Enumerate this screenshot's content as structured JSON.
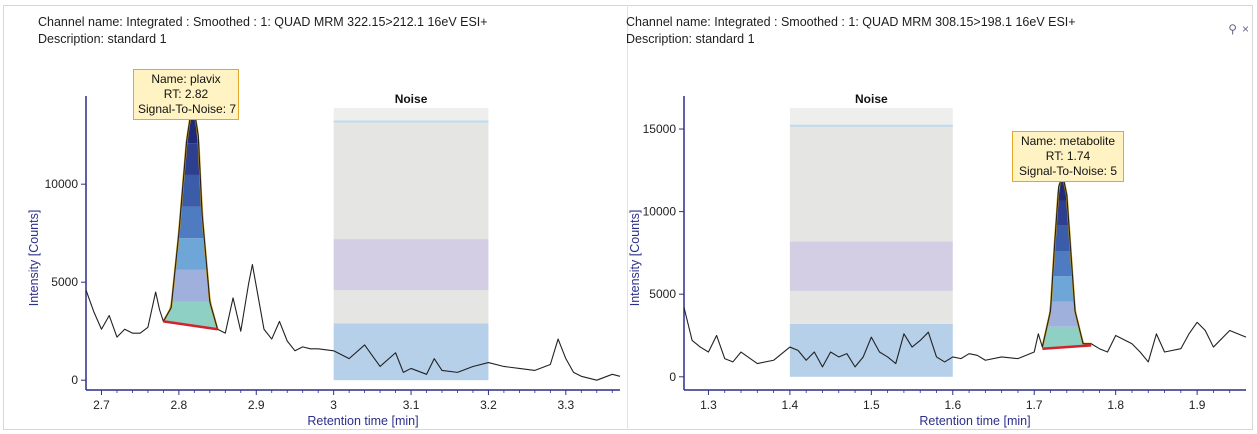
{
  "panels": [
    {
      "id": "left",
      "channel_line": "Channel name: Integrated : Smoothed : 1: QUAD MRM 322.15>212.1 16eV ESI+",
      "description_line": "Description: standard 1",
      "noise_label": "Noise",
      "tooltip": {
        "name": "Name: plavix",
        "rt": "RT: 2.82",
        "sn": "Signal-To-Noise: 7"
      }
    },
    {
      "id": "right",
      "channel_line": "Channel name: Integrated : Smoothed : 1: QUAD MRM 308.15>198.1 16eV ESI+",
      "description_line": "Description: standard 1",
      "noise_label": "Noise",
      "tooltip": {
        "name": "Name: metabolite",
        "rt": "RT: 1.74",
        "sn": "Signal-To-Noise: 5"
      }
    }
  ],
  "pane_controls": {
    "pin_icon": "pin-icon",
    "close_icon": "close-icon",
    "pin_glyph": "⚲",
    "close_glyph": "×"
  },
  "colors": {
    "axis": "#2b2f8a",
    "trace": "#222222",
    "baseline": "#d2232a",
    "peak_outline": "#d3a017",
    "noise_blue": "#a9c8e6",
    "noise_purple": "#ccc6e0",
    "noise_grey": "#e0e1df"
  },
  "chart_data": [
    {
      "type": "line",
      "xlabel": "Retention time [min]",
      "ylabel": "Intensity [Counts]",
      "xlim": [
        2.68,
        3.37
      ],
      "ylim": [
        -500,
        14500
      ],
      "x_ticks": [
        "2.7",
        "2.8",
        "2.9",
        "3",
        "3.1",
        "3.2",
        "3.3"
      ],
      "x_tick_values": [
        2.7,
        2.8,
        2.9,
        3.0,
        3.1,
        3.2,
        3.3
      ],
      "y_ticks": [
        "0",
        "5000",
        "10000"
      ],
      "y_tick_values": [
        0,
        5000,
        10000
      ],
      "noise_region": [
        3.0,
        3.2
      ],
      "noise_band_levels": [
        0,
        2900,
        4600,
        7200,
        13200,
        14000
      ],
      "peak": {
        "name": "plavix",
        "rt": 2.82,
        "apex": 13700,
        "start": [
          2.78,
          3000
        ],
        "end": [
          2.85,
          2600
        ]
      },
      "series": [
        {
          "x": [
            2.68,
            2.69,
            2.7,
            2.71,
            2.72,
            2.73,
            2.74,
            2.75,
            2.76,
            2.77,
            2.775,
            2.78,
            2.79,
            2.8,
            2.81,
            2.815,
            2.82,
            2.825,
            2.83,
            2.84,
            2.85,
            2.86,
            2.87,
            2.88,
            2.89,
            2.895,
            2.9,
            2.91,
            2.92,
            2.93,
            2.94,
            2.95,
            2.96,
            2.97,
            2.98,
            3.0,
            3.02,
            3.04,
            3.06,
            3.08,
            3.09,
            3.1,
            3.12,
            3.13,
            3.14,
            3.16,
            3.18,
            3.2,
            3.22,
            3.24,
            3.26,
            3.28,
            3.29,
            3.3,
            3.31,
            3.32,
            3.34,
            3.36,
            3.37
          ],
          "y": [
            4600,
            3500,
            2600,
            3300,
            2200,
            2600,
            2400,
            2400,
            2700,
            4500,
            3600,
            3000,
            3700,
            7500,
            12200,
            13500,
            13700,
            12500,
            8500,
            4000,
            2600,
            2400,
            4200,
            2500,
            4900,
            5900,
            4800,
            2600,
            2100,
            3000,
            2000,
            1500,
            1700,
            1600,
            1600,
            1500,
            1100,
            1800,
            700,
            1400,
            400,
            600,
            300,
            1100,
            500,
            400,
            700,
            900,
            700,
            600,
            500,
            800,
            2100,
            1100,
            400,
            200,
            0,
            300,
            200
          ]
        }
      ]
    },
    {
      "type": "line",
      "xlabel": "Retention time [min]",
      "ylabel": "Intensity [Counts]",
      "xlim": [
        1.27,
        1.96
      ],
      "ylim": [
        -800,
        17000
      ],
      "x_ticks": [
        "1.3",
        "1.4",
        "1.5",
        "1.6",
        "1.7",
        "1.8",
        "1.9"
      ],
      "x_tick_values": [
        1.3,
        1.4,
        1.5,
        1.6,
        1.7,
        1.8,
        1.9
      ],
      "y_ticks": [
        "0",
        "5000",
        "10000",
        "15000"
      ],
      "y_tick_values": [
        0,
        5000,
        10000,
        15000
      ],
      "noise_region": [
        1.4,
        1.6
      ],
      "noise_band_levels": [
        0,
        3200,
        5200,
        8200,
        15200,
        17000
      ],
      "peak": {
        "name": "metabolite",
        "rt": 1.74,
        "apex": 12200,
        "start": [
          1.71,
          1700
        ],
        "end": [
          1.77,
          1900
        ]
      },
      "series": [
        {
          "x": [
            1.27,
            1.28,
            1.29,
            1.3,
            1.31,
            1.32,
            1.33,
            1.34,
            1.36,
            1.38,
            1.4,
            1.41,
            1.42,
            1.43,
            1.44,
            1.45,
            1.46,
            1.47,
            1.48,
            1.49,
            1.5,
            1.51,
            1.52,
            1.53,
            1.54,
            1.55,
            1.56,
            1.57,
            1.58,
            1.59,
            1.6,
            1.61,
            1.62,
            1.63,
            1.64,
            1.66,
            1.68,
            1.7,
            1.705,
            1.71,
            1.72,
            1.725,
            1.73,
            1.735,
            1.74,
            1.745,
            1.75,
            1.76,
            1.77,
            1.78,
            1.79,
            1.8,
            1.82,
            1.83,
            1.84,
            1.85,
            1.86,
            1.88,
            1.89,
            1.9,
            1.91,
            1.92,
            1.94,
            1.96
          ],
          "y": [
            4200,
            2200,
            1800,
            1500,
            2500,
            1100,
            900,
            1500,
            800,
            1000,
            1800,
            1600,
            1000,
            1500,
            600,
            1500,
            1200,
            1400,
            600,
            1200,
            2400,
            1500,
            1200,
            800,
            2600,
            1800,
            2200,
            2700,
            1200,
            900,
            1200,
            1100,
            1400,
            1300,
            1000,
            1200,
            1100,
            1500,
            2600,
            1800,
            4000,
            8000,
            11500,
            12200,
            11000,
            7500,
            4000,
            2000,
            2000,
            1700,
            1500,
            2500,
            2000,
            1500,
            900,
            2600,
            1500,
            1700,
            2600,
            3300,
            2800,
            1800,
            2800,
            2400
          ]
        }
      ]
    }
  ]
}
